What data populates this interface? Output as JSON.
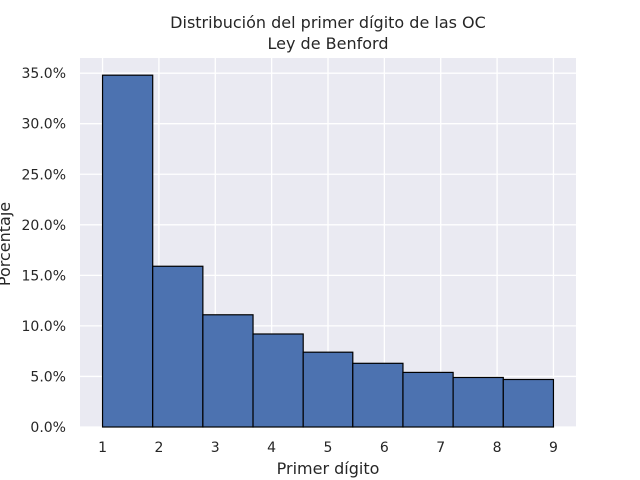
{
  "chart_data": {
    "type": "bar",
    "title": "Distribución del primer dígito de las OC",
    "subtitle": "Ley de Benford",
    "xlabel": "Primer dígito",
    "ylabel": "Porcentaje",
    "categories": [
      "1",
      "2",
      "3",
      "4",
      "5",
      "6",
      "7",
      "8",
      "9"
    ],
    "values": [
      34.8,
      15.9,
      11.1,
      9.2,
      7.4,
      6.3,
      5.4,
      4.9,
      4.7
    ],
    "xlim": [
      0.6,
      9.4
    ],
    "ylim": [
      0,
      36.5
    ],
    "yticks": [
      0,
      5,
      10,
      15,
      20,
      25,
      30,
      35
    ],
    "ytick_labels": [
      "0.0%",
      "5.0%",
      "10.0%",
      "15.0%",
      "20.0%",
      "25.0%",
      "30.0%",
      "35.0%"
    ],
    "bin_edges": [
      1.0,
      1.89,
      2.78,
      3.67,
      4.56,
      5.44,
      6.33,
      7.22,
      8.11,
      9.0
    ],
    "xticks": [
      1,
      2,
      3,
      4,
      5,
      6,
      7,
      8,
      9
    ],
    "xtick_labels": [
      "1",
      "2",
      "3",
      "4",
      "5",
      "6",
      "7",
      "8",
      "9"
    ],
    "grid": true,
    "colors": {
      "bar": "#4c72b0",
      "edge": "#000000",
      "background": "#eaeaf2",
      "grid": "#ffffff"
    }
  }
}
